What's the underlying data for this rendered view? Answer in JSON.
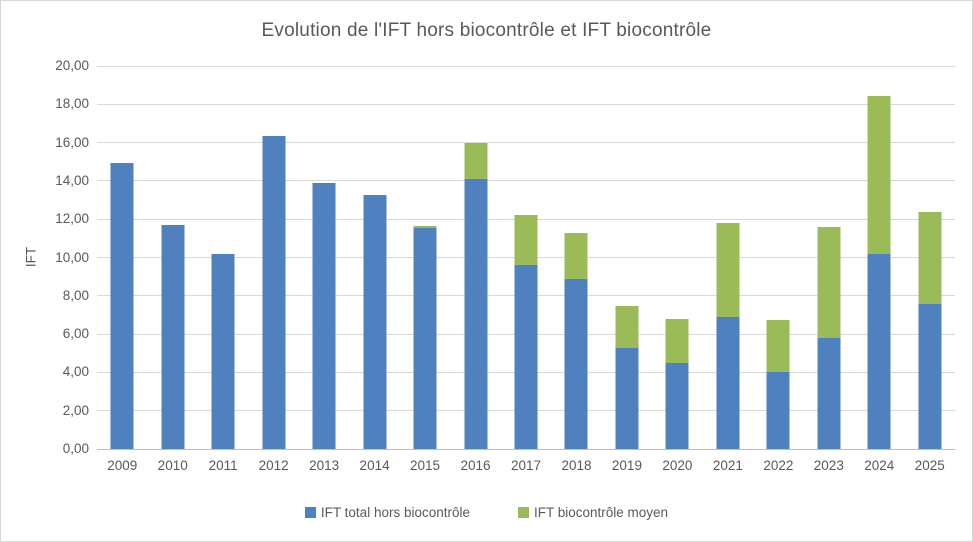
{
  "chart_data": {
    "type": "bar",
    "stacked": true,
    "title": "Evolution de l'IFT hors biocontrôle et IFT biocontrôle",
    "ylabel": "IFT",
    "xlabel": "",
    "ylim": [
      0,
      20
    ],
    "ytick_step": 2,
    "ytick_labels": [
      "0,00",
      "2,00",
      "4,00",
      "6,00",
      "8,00",
      "10,00",
      "12,00",
      "14,00",
      "16,00",
      "18,00",
      "20,00"
    ],
    "grid": true,
    "legend_position": "bottom",
    "categories": [
      "2009",
      "2010",
      "2011",
      "2012",
      "2013",
      "2014",
      "2015",
      "2016",
      "2017",
      "2018",
      "2019",
      "2020",
      "2021",
      "2022",
      "2023",
      "2024",
      "2025"
    ],
    "series": [
      {
        "name": "IFT total hors biocontrôle",
        "color": "#4e81bd",
        "values": [
          14.95,
          11.7,
          10.2,
          16.35,
          13.9,
          13.25,
          11.55,
          14.1,
          9.6,
          8.9,
          5.3,
          4.5,
          6.9,
          4.0,
          5.8,
          10.2,
          7.55
        ]
      },
      {
        "name": "IFT biocontrôle moyen",
        "color": "#9bbb59",
        "values": [
          0,
          0,
          0,
          0,
          0,
          0,
          0.1,
          1.9,
          2.6,
          2.4,
          2.15,
          2.3,
          4.9,
          2.75,
          5.8,
          8.25,
          4.85
        ]
      }
    ]
  },
  "legend": [
    {
      "label": "IFT total hors biocontrôle",
      "color": "#4e81bd"
    },
    {
      "label": "IFT biocontrôle moyen",
      "color": "#9bbb59"
    }
  ],
  "colors": {
    "text": "#595959",
    "gridline": "#d9d9d9",
    "axis_line": "#bfbfbf",
    "background": "#ffffff",
    "border": "#d7d7d7"
  }
}
